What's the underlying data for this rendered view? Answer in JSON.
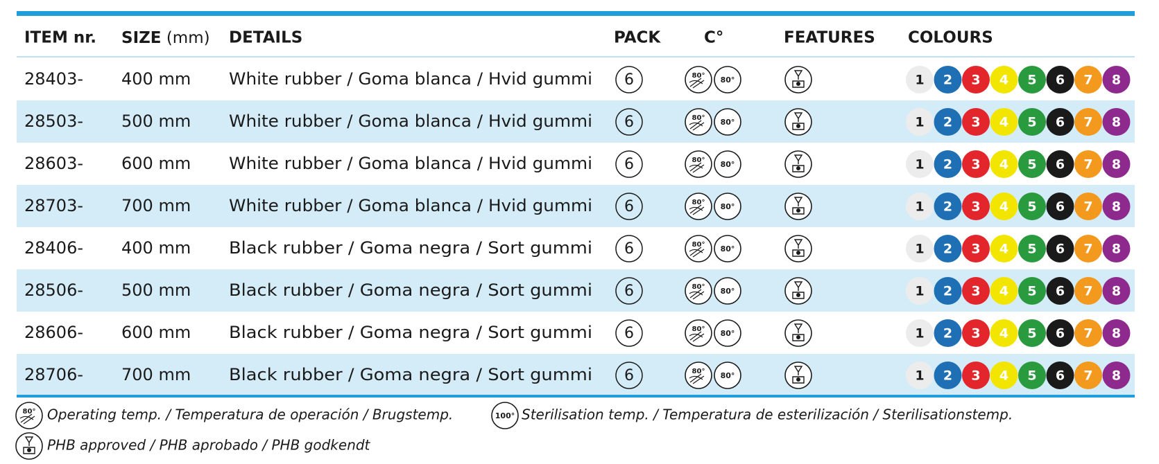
{
  "header": {
    "item": "ITEM nr.",
    "size": "SIZE",
    "size_unit": "(mm)",
    "details": "DETAILS",
    "pack": "PACK",
    "temp": "C°",
    "features": "FEATURES",
    "colours": "COLOURS"
  },
  "colours": [
    {
      "label": 1,
      "color": "#ececec",
      "text_color": "#1a1a1a"
    },
    {
      "label": 2,
      "color": "#1f6fb5",
      "text_color": "#ffffff"
    },
    {
      "label": 3,
      "color": "#e3262b",
      "text_color": "#ffffff"
    },
    {
      "label": 4,
      "color": "#f2e600",
      "text_color": "#ffffff"
    },
    {
      "label": 5,
      "color": "#2a9a3e",
      "text_color": "#ffffff"
    },
    {
      "label": 6,
      "color": "#1a1a1a",
      "text_color": "#ffffff"
    },
    {
      "label": 7,
      "color": "#f39a1e",
      "text_color": "#ffffff"
    },
    {
      "label": 8,
      "color": "#8e2a8e",
      "text_color": "#ffffff"
    }
  ],
  "table": {
    "rows": [
      {
        "item": "28403-",
        "size": "400 mm",
        "details": "White rubber / Goma blanca / Hvid gummi",
        "pack": 6,
        "operating_temp": "80°",
        "sterilisation_temp": "80°"
      },
      {
        "item": "28503-",
        "size": "500 mm",
        "details": "White rubber / Goma blanca / Hvid gummi",
        "pack": 6,
        "operating_temp": "80°",
        "sterilisation_temp": "80°"
      },
      {
        "item": "28603-",
        "size": "600 mm",
        "details": "White rubber / Goma blanca / Hvid gummi",
        "pack": 6,
        "operating_temp": "80°",
        "sterilisation_temp": "80°"
      },
      {
        "item": "28703-",
        "size": "700 mm",
        "details": "White rubber / Goma blanca / Hvid gummi",
        "pack": 6,
        "operating_temp": "80°",
        "sterilisation_temp": "80°"
      },
      {
        "item": "28406-",
        "size": "400 mm",
        "details": "Black rubber / Goma negra / Sort gummi",
        "pack": 6,
        "operating_temp": "80°",
        "sterilisation_temp": "80°"
      },
      {
        "item": "28506-",
        "size": "500 mm",
        "details": "Black rubber / Goma negra / Sort gummi",
        "pack": 6,
        "operating_temp": "80°",
        "sterilisation_temp": "80°"
      },
      {
        "item": "28606-",
        "size": "600 mm",
        "details": "Black rubber / Goma negra / Sort gummi",
        "pack": 6,
        "operating_temp": "80°",
        "sterilisation_temp": "80°"
      },
      {
        "item": "28706-",
        "size": "700 mm",
        "details": "Black rubber / Goma negra / Sort gummi",
        "pack": 6,
        "operating_temp": "80°",
        "sterilisation_temp": "80°"
      }
    ]
  },
  "legend": {
    "operating": {
      "icon": "80°",
      "text": "Operating temp. / Temperatura de operación / Brugstemp."
    },
    "sterilisation": {
      "icon": "100°",
      "text": "Sterilisation temp. / Temperatura de esterilización / Sterilisationstemp."
    },
    "phb": {
      "text": "PHB approved / PHB aprobado / PHB godkendt"
    }
  }
}
